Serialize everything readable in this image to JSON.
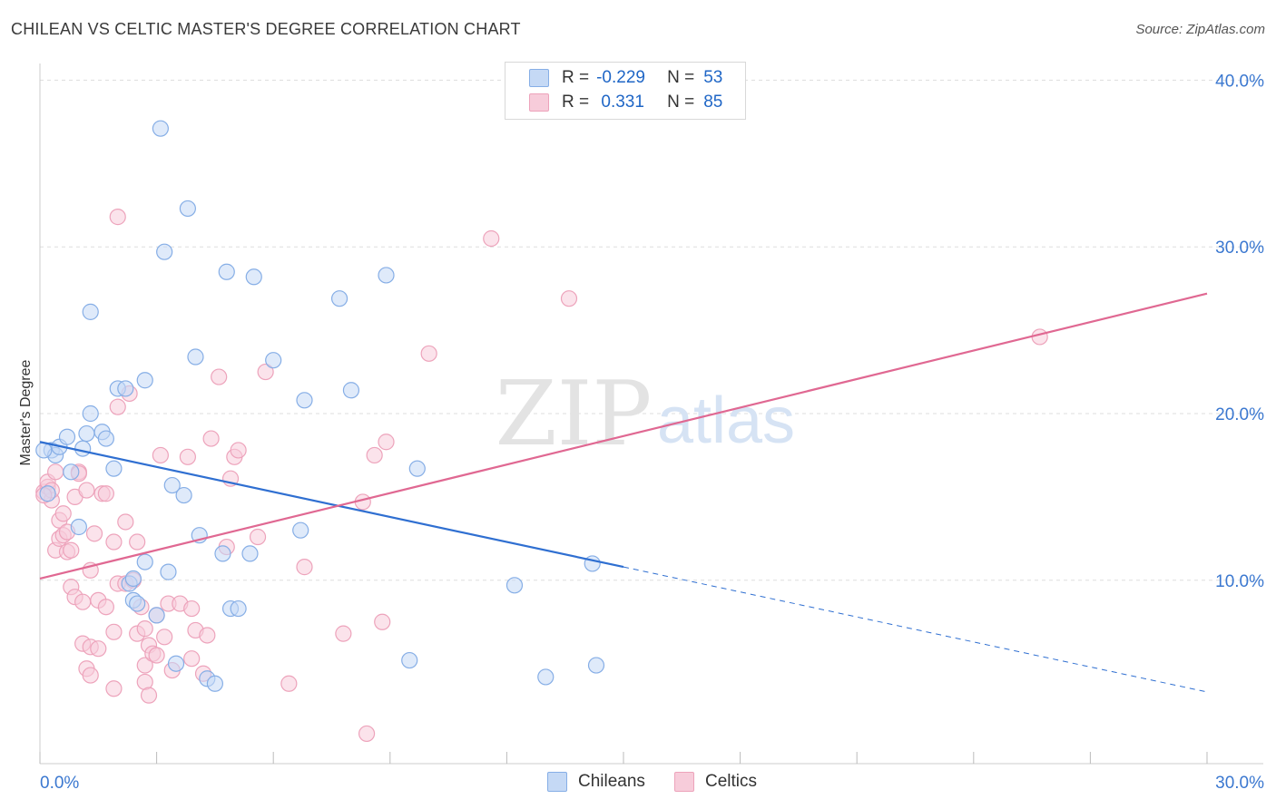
{
  "title": "CHILEAN VS CELTIC MASTER'S DEGREE CORRELATION CHART",
  "source": "Source: ZipAtlas.com",
  "watermark": {
    "zip": "ZIP",
    "atlas": "atlas"
  },
  "legend": {
    "rows": [
      {
        "r_label": "R =",
        "r_value": "-0.229",
        "n_label": "N =",
        "n_value": "53"
      },
      {
        "r_label": "R =",
        "r_value": " 0.331",
        "n_label": "N =",
        "n_value": "85"
      }
    ]
  },
  "bottom_legend": {
    "chileans": "Chileans",
    "celtics": "Celtics"
  },
  "colors": {
    "chileans_fill": "#c5d9f5",
    "chileans_stroke": "#86aee6",
    "chileans_line": "#2f6fd1",
    "celtics_fill": "#f7ccda",
    "celtics_stroke": "#eda3bb",
    "celtics_line": "#e06892",
    "tick_label": "#3b78d0",
    "grid": "#dddddd"
  },
  "chart_data": {
    "type": "scatter",
    "title": "CHILEAN VS CELTIC MASTER'S DEGREE CORRELATION CHART",
    "xlabel": "",
    "ylabel": "Master's Degree",
    "xlim": [
      0,
      30
    ],
    "ylim": [
      -1,
      41
    ],
    "x_tick_labels": [
      {
        "value": 0,
        "label": "0.0%"
      },
      {
        "value": 30,
        "label": "30.0%"
      }
    ],
    "y_tick_labels": [
      {
        "value": 10,
        "label": "10.0%"
      },
      {
        "value": 20,
        "label": "20.0%"
      },
      {
        "value": 30,
        "label": "30.0%"
      },
      {
        "value": 40,
        "label": "40.0%"
      }
    ],
    "x_ticks": [
      0,
      3,
      6,
      9,
      12,
      15,
      18,
      21,
      24,
      27,
      30
    ],
    "y_grid": [
      10,
      20,
      30,
      40
    ],
    "series": [
      {
        "name": "Chileans",
        "r": -0.229,
        "n": 53,
        "trend": {
          "x0": 0,
          "y0": 18.3,
          "x1": 15,
          "y1": 10.8,
          "dash_to_x": 30,
          "dash_to_y": 3.3
        },
        "points": [
          [
            0.2,
            15.2
          ],
          [
            0.3,
            17.8
          ],
          [
            0.4,
            17.5
          ],
          [
            0.5,
            18.0
          ],
          [
            0.7,
            18.6
          ],
          [
            0.8,
            16.5
          ],
          [
            1.0,
            13.2
          ],
          [
            1.1,
            17.9
          ],
          [
            1.2,
            18.8
          ],
          [
            1.3,
            20.0
          ],
          [
            1.3,
            26.1
          ],
          [
            1.6,
            18.9
          ],
          [
            1.7,
            18.5
          ],
          [
            1.9,
            16.7
          ],
          [
            2.0,
            21.5
          ],
          [
            2.2,
            21.5
          ],
          [
            2.3,
            9.8
          ],
          [
            2.4,
            8.8
          ],
          [
            2.4,
            10.1
          ],
          [
            2.5,
            8.6
          ],
          [
            2.7,
            11.1
          ],
          [
            2.7,
            22.0
          ],
          [
            3.0,
            7.9
          ],
          [
            3.1,
            37.1
          ],
          [
            3.2,
            29.7
          ],
          [
            3.3,
            10.5
          ],
          [
            3.4,
            15.7
          ],
          [
            3.5,
            5.0
          ],
          [
            3.7,
            15.1
          ],
          [
            3.8,
            32.3
          ],
          [
            4.0,
            23.4
          ],
          [
            4.1,
            12.7
          ],
          [
            4.3,
            4.1
          ],
          [
            4.5,
            3.8
          ],
          [
            4.7,
            11.6
          ],
          [
            4.8,
            28.5
          ],
          [
            4.9,
            8.3
          ],
          [
            5.1,
            8.3
          ],
          [
            5.4,
            11.6
          ],
          [
            5.5,
            28.2
          ],
          [
            6.0,
            23.2
          ],
          [
            6.7,
            13.0
          ],
          [
            6.8,
            20.8
          ],
          [
            7.7,
            26.9
          ],
          [
            8.0,
            21.4
          ],
          [
            8.9,
            28.3
          ],
          [
            9.5,
            5.2
          ],
          [
            9.7,
            16.7
          ],
          [
            12.2,
            9.7
          ],
          [
            13.0,
            4.2
          ],
          [
            14.2,
            11.0
          ],
          [
            14.3,
            4.9
          ],
          [
            0.1,
            17.8
          ]
        ]
      },
      {
        "name": "Celtics",
        "r": 0.331,
        "n": 85,
        "trend": {
          "x0": 0,
          "y0": 10.1,
          "x1": 30,
          "y1": 27.2
        },
        "points": [
          [
            0.1,
            15.3
          ],
          [
            0.2,
            15.6
          ],
          [
            0.2,
            15.9
          ],
          [
            0.3,
            14.8
          ],
          [
            0.3,
            15.4
          ],
          [
            0.4,
            16.5
          ],
          [
            0.4,
            11.8
          ],
          [
            0.5,
            12.5
          ],
          [
            0.5,
            13.6
          ],
          [
            0.6,
            14.0
          ],
          [
            0.6,
            12.7
          ],
          [
            0.7,
            11.7
          ],
          [
            0.7,
            12.9
          ],
          [
            0.8,
            11.8
          ],
          [
            0.8,
            9.6
          ],
          [
            0.9,
            9.0
          ],
          [
            0.9,
            15.0
          ],
          [
            1.0,
            16.5
          ],
          [
            1.0,
            16.4
          ],
          [
            1.1,
            8.7
          ],
          [
            1.1,
            6.2
          ],
          [
            1.2,
            15.4
          ],
          [
            1.2,
            4.7
          ],
          [
            1.3,
            4.3
          ],
          [
            1.3,
            6.0
          ],
          [
            1.4,
            12.8
          ],
          [
            1.5,
            8.8
          ],
          [
            1.5,
            5.9
          ],
          [
            1.6,
            15.2
          ],
          [
            1.7,
            8.4
          ],
          [
            1.7,
            15.2
          ],
          [
            1.9,
            3.5
          ],
          [
            1.9,
            6.9
          ],
          [
            1.9,
            12.3
          ],
          [
            2.0,
            9.8
          ],
          [
            2.2,
            9.8
          ],
          [
            2.2,
            13.5
          ],
          [
            2.3,
            21.2
          ],
          [
            2.4,
            10.0
          ],
          [
            2.5,
            12.3
          ],
          [
            2.5,
            6.8
          ],
          [
            2.6,
            8.4
          ],
          [
            2.7,
            7.1
          ],
          [
            2.7,
            4.9
          ],
          [
            2.7,
            3.9
          ],
          [
            2.8,
            6.1
          ],
          [
            2.8,
            3.1
          ],
          [
            2.9,
            5.6
          ],
          [
            3.0,
            5.5
          ],
          [
            3.0,
            7.9
          ],
          [
            3.1,
            17.5
          ],
          [
            3.2,
            6.6
          ],
          [
            3.3,
            8.6
          ],
          [
            3.4,
            4.6
          ],
          [
            3.6,
            8.6
          ],
          [
            3.8,
            17.4
          ],
          [
            3.9,
            5.3
          ],
          [
            3.9,
            8.3
          ],
          [
            4.0,
            7.0
          ],
          [
            4.2,
            4.4
          ],
          [
            4.3,
            6.7
          ],
          [
            4.4,
            18.5
          ],
          [
            4.6,
            22.2
          ],
          [
            4.8,
            12.0
          ],
          [
            4.9,
            16.1
          ],
          [
            5.0,
            17.4
          ],
          [
            5.1,
            17.8
          ],
          [
            5.6,
            12.6
          ],
          [
            5.8,
            22.5
          ],
          [
            6.4,
            3.8
          ],
          [
            6.8,
            10.8
          ],
          [
            7.8,
            6.8
          ],
          [
            8.3,
            14.7
          ],
          [
            8.4,
            0.8
          ],
          [
            8.6,
            17.5
          ],
          [
            8.8,
            7.5
          ],
          [
            8.9,
            18.3
          ],
          [
            10.0,
            23.6
          ],
          [
            11.6,
            30.5
          ],
          [
            13.6,
            26.9
          ],
          [
            25.7,
            24.6
          ],
          [
            2.0,
            31.8
          ],
          [
            2.0,
            20.4
          ],
          [
            1.3,
            10.6
          ],
          [
            0.1,
            15.1
          ]
        ]
      }
    ]
  }
}
